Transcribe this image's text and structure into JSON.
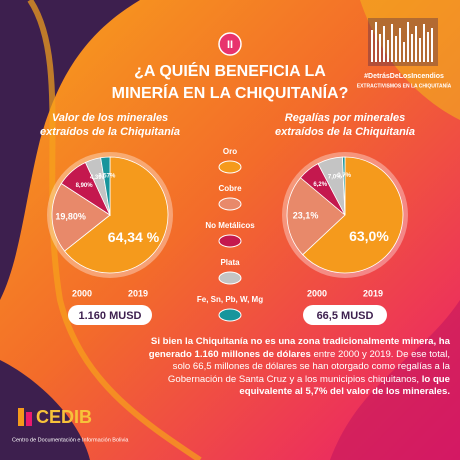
{
  "badge": "II",
  "title": [
    "¿A QUIÉN BENEFICIA LA",
    "MINERÍA EN LA CHIQUITANÍA?"
  ],
  "campaign": {
    "hashtag": "#DetrásDeLosIncendios",
    "subtitle": "EXTRACTIVISMOS EN LA CHIQUITANÍA"
  },
  "legend": {
    "labels": [
      "Oro",
      "Cobre",
      "No Metálicos",
      "Plata",
      "Fe, Sn, Pb, W, Mg"
    ],
    "colors": [
      "#f59a1c",
      "#e8896a",
      "#c4184e",
      "#c4c4c4",
      "#17959c"
    ]
  },
  "chart_data": [
    {
      "type": "pie",
      "title": [
        "Valor de los minerales",
        "extraídos de la Chiquitanía"
      ],
      "values": [
        64.34,
        19.8,
        8.9,
        4.39,
        2.57
      ],
      "value_labels": [
        "64,34 %",
        "19,80%",
        "8,90%",
        "4,39%",
        "2,57%"
      ],
      "years": [
        "2000",
        "2019"
      ],
      "total": "1.160 MUSD"
    },
    {
      "type": "pie",
      "title": [
        "Regalías por minerales",
        "extraídos de la Chiquitanía"
      ],
      "values": [
        63.0,
        23.1,
        6.2,
        7.0,
        0.7
      ],
      "value_labels": [
        "63,0%",
        "23,1%",
        "6,2%",
        "7,0%",
        "0,7%"
      ],
      "years": [
        "2000",
        "2019"
      ],
      "total": "66,5 MUSD"
    }
  ],
  "body": [
    {
      "text": "Si bien la Chiquitanía no es una zona tradicionalmente minera, ha generado 1.160 millones de dólares",
      "bold": true
    },
    {
      "text": " entre 2000 y 2019. De ese total, solo 66,5 millones de dólares se han otorgado como regalías a la Gobernación de Santa Cruz y a los municipios chiquitanos, ",
      "bold": false
    },
    {
      "text": "lo que equivalente al 5,7% del valor de los minerales.",
      "bold": true
    }
  ],
  "footer": {
    "logo": "CEDIB",
    "org": "Centro de Documentación e Información Bolivia"
  }
}
